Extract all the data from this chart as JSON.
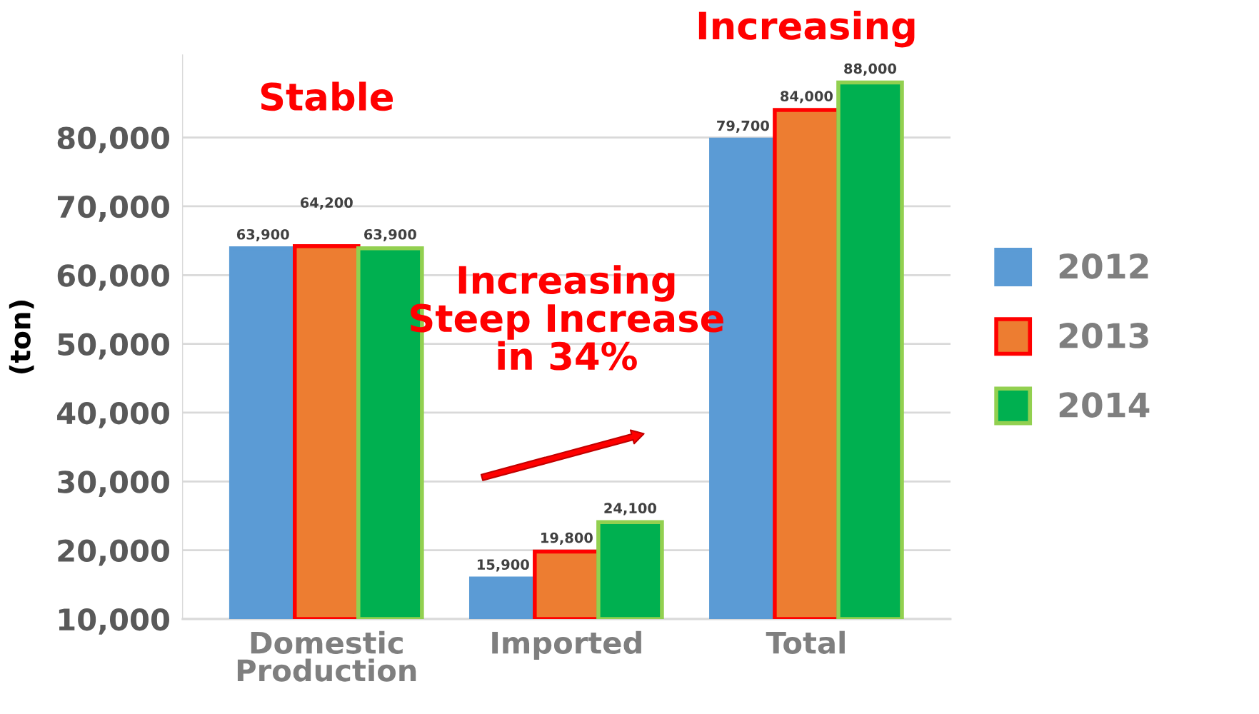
{
  "chart_data": {
    "type": "bar",
    "categories": [
      "Domestic\nProduction",
      "Imported",
      "Total"
    ],
    "ylabel": "(ton)",
    "series": [
      {
        "name": "2012",
        "color": "#5b9bd5",
        "values": [
          63900,
          15900,
          79700
        ],
        "value_labels": [
          "63,900",
          "15,900",
          "79,700"
        ]
      },
      {
        "name": "2013",
        "color": "#ed7d31",
        "values": [
          64200,
          19800,
          84000
        ],
        "value_labels": [
          "64,200",
          "19,800",
          "84,000"
        ]
      },
      {
        "name": "2014",
        "color": "#00b050",
        "values": [
          63900,
          24100,
          88000
        ],
        "value_labels": [
          "63,900",
          "24,100",
          "88,000"
        ]
      }
    ],
    "ylim": [
      10000,
      92000
    ],
    "yticks": [
      {
        "value": 10000,
        "label": "10,000"
      },
      {
        "value": 20000,
        "label": "20,000"
      },
      {
        "value": 30000,
        "label": "30,000"
      },
      {
        "value": 40000,
        "label": "40,000"
      },
      {
        "value": 50000,
        "label": "50,000"
      },
      {
        "value": 60000,
        "label": "60,000"
      },
      {
        "value": 70000,
        "label": "70,000"
      },
      {
        "value": 80000,
        "label": "80,000"
      }
    ],
    "grid": "y",
    "legend": "right",
    "annotations": [
      "Stable",
      "Increasing\nSteep Increase\nin 34%",
      "Increasing"
    ]
  }
}
